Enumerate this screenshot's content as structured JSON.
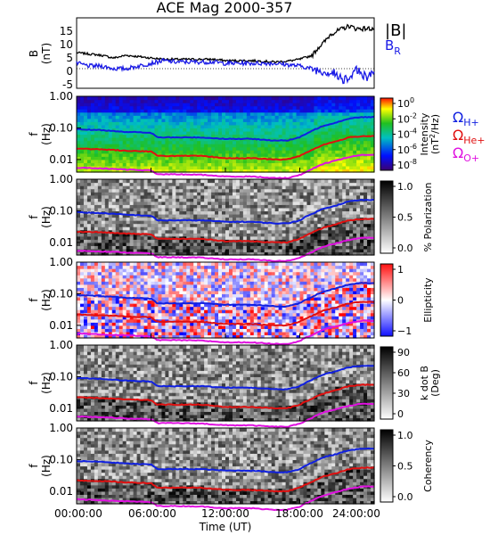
{
  "figure": {
    "title": "ACE Mag 2000-357",
    "xlabel": "Time (UT)",
    "xticks": [
      "00:00:00",
      "06:00:00",
      "12:00:00",
      "18:00:00",
      "24:00:00"
    ]
  },
  "colors": {
    "b_total": "#000000",
    "b_r": "#1a1ae6",
    "omega_h": "#1020e0",
    "omega_he": "#e01010",
    "omega_o": "#e010e0"
  },
  "panel_b": {
    "ylabel_main": "B",
    "ylabel_unit": "(nT)",
    "yticks": [
      "15",
      "10",
      "5",
      "0",
      "-5"
    ],
    "legend_total": "|B|",
    "legend_r_main": "B",
    "legend_r_sub": "R"
  },
  "panel_power": {
    "ylabel_main": "f",
    "ylabel_unit": "(Hz)",
    "yticks": [
      "1.00",
      "0.10",
      "0.01"
    ],
    "cbar_ticks": [
      {
        "base": "10",
        "exp": "0"
      },
      {
        "base": "10",
        "exp": "-2"
      },
      {
        "base": "10",
        "exp": "-4"
      },
      {
        "base": "10",
        "exp": "-6"
      },
      {
        "base": "10",
        "exp": "-8"
      }
    ],
    "cbar_label_1": "Intensity",
    "cbar_label_2a": "(nT",
    "cbar_label_2sup": "2",
    "cbar_label_2b": "/Hz)",
    "legend": [
      {
        "main": "Ω",
        "sub": "H+"
      },
      {
        "main": "Ω",
        "sub": "He+"
      },
      {
        "main": "Ω",
        "sub": "O+"
      }
    ]
  },
  "panel_pol": {
    "ylabel_main": "f",
    "ylabel_unit": "(Hz)",
    "yticks": [
      "1.00",
      "0.10",
      "0.01"
    ],
    "cbar_ticks": [
      "1.0",
      "0.5",
      "0.0"
    ],
    "cbar_label": "% Polarization"
  },
  "panel_ell": {
    "ylabel_main": "f",
    "ylabel_unit": "(Hz)",
    "yticks": [
      "1.00",
      "0.10",
      "0.01"
    ],
    "cbar_ticks": [
      "1",
      "0",
      "−1"
    ],
    "cbar_label": "Ellipticity"
  },
  "panel_kdb": {
    "ylabel_main": "f",
    "ylabel_unit": "(Hz)",
    "yticks": [
      "1.00",
      "0.10",
      "0.01"
    ],
    "cbar_ticks": [
      "90",
      "60",
      "30",
      "0"
    ],
    "cbar_label_1": "k dot B",
    "cbar_label_2": "(Deg)"
  },
  "panel_coh": {
    "ylabel_main": "f",
    "ylabel_unit": "(Hz)",
    "yticks": [
      "1.00",
      "0.10",
      "0.01"
    ],
    "cbar_ticks": [
      "1.0",
      "0.5",
      "0.0"
    ],
    "cbar_label": "Coherency"
  },
  "chart_data": {
    "type": "heatmap",
    "title": "ACE Mag 2000-357",
    "xlabel": "Time (UT)",
    "x_range_hours": [
      0,
      24
    ],
    "panels": [
      {
        "name": "B",
        "type": "line",
        "ylabel": "B (nT)",
        "ylim": [
          -8,
          19
        ],
        "series": [
          {
            "name": "|B|",
            "x": [
              0,
              1,
              2,
              3,
              4,
              5,
              6,
              7,
              8,
              9,
              10,
              11,
              12,
              13,
              14,
              15,
              16,
              17,
              18,
              19,
              19.5,
              20,
              20.5,
              21,
              21.5,
              22,
              22.5,
              23,
              23.5,
              24
            ],
            "values": [
              6,
              5.5,
              5,
              4,
              5,
              4.5,
              4,
              3.5,
              3.5,
              3.5,
              3.5,
              3.5,
              3,
              3,
              3,
              2.8,
              2.5,
              2.8,
              3.5,
              5,
              8,
              10,
              13,
              14,
              15,
              16,
              15,
              15,
              15,
              15
            ]
          },
          {
            "name": "B_R",
            "x": [
              0,
              1,
              2,
              3,
              4,
              5,
              6,
              7,
              8,
              9,
              10,
              11,
              12,
              13,
              14,
              15,
              16,
              17,
              18,
              19,
              20,
              21,
              21.5,
              22,
              22.5,
              23,
              23.5,
              24
            ],
            "values": [
              2,
              1,
              1,
              0,
              0,
              1,
              2,
              3,
              2.5,
              2.5,
              2.5,
              2.5,
              2,
              2,
              2,
              2,
              2,
              1.5,
              1,
              0,
              -1,
              -2,
              -4,
              -3,
              0,
              -2,
              -3,
              -2
            ]
          }
        ]
      },
      {
        "name": "Power",
        "ylabel": "f (Hz)",
        "ylim": [
          0.004,
          1.0
        ],
        "yscale": "log",
        "zlabel": "Intensity (nT²/Hz)",
        "zlim": [
          1e-08,
          1
        ]
      },
      {
        "name": "Polarization",
        "ylabel": "f (Hz)",
        "zlabel": "% Polarization",
        "zlim": [
          0,
          1
        ]
      },
      {
        "name": "Ellipticity",
        "ylabel": "f (Hz)",
        "zlabel": "Ellipticity",
        "zlim": [
          -1,
          1
        ]
      },
      {
        "name": "k dot B",
        "ylabel": "f (Hz)",
        "zlabel": "k dot B (Deg)",
        "zlim": [
          0,
          90
        ]
      },
      {
        "name": "Coherency",
        "ylabel": "f (Hz)",
        "zlabel": "Coherency",
        "zlim": [
          0,
          1
        ]
      }
    ],
    "gyrofrequency_lines": [
      {
        "name": "Ω H+",
        "x": [
          0,
          2,
          4,
          6,
          6.5,
          8,
          10,
          12,
          14,
          16,
          17,
          18,
          19,
          20,
          21,
          22,
          23,
          24
        ],
        "values": [
          0.09,
          0.085,
          0.075,
          0.07,
          0.05,
          0.05,
          0.05,
          0.045,
          0.045,
          0.04,
          0.04,
          0.05,
          0.08,
          0.12,
          0.15,
          0.2,
          0.22,
          0.22
        ]
      },
      {
        "name": "Ω He+",
        "x": [
          0,
          2,
          4,
          6,
          6.5,
          8,
          10,
          12,
          14,
          16,
          17,
          18,
          19,
          20,
          21,
          22,
          23,
          24
        ],
        "values": [
          0.022,
          0.021,
          0.019,
          0.018,
          0.013,
          0.013,
          0.013,
          0.011,
          0.011,
          0.01,
          0.01,
          0.013,
          0.02,
          0.03,
          0.038,
          0.05,
          0.055,
          0.055
        ]
      },
      {
        "name": "Ω O+",
        "x": [
          0,
          2,
          4,
          6,
          6.5,
          8,
          10,
          12,
          14,
          16,
          17,
          18,
          19,
          20,
          21,
          22,
          23,
          24
        ],
        "values": [
          0.0055,
          0.0052,
          0.0048,
          0.0045,
          0.0034,
          0.0034,
          0.0033,
          0.0029,
          0.0029,
          0.0026,
          0.0026,
          0.0032,
          0.005,
          0.0075,
          0.0095,
          0.012,
          0.014,
          0.014
        ]
      }
    ]
  }
}
